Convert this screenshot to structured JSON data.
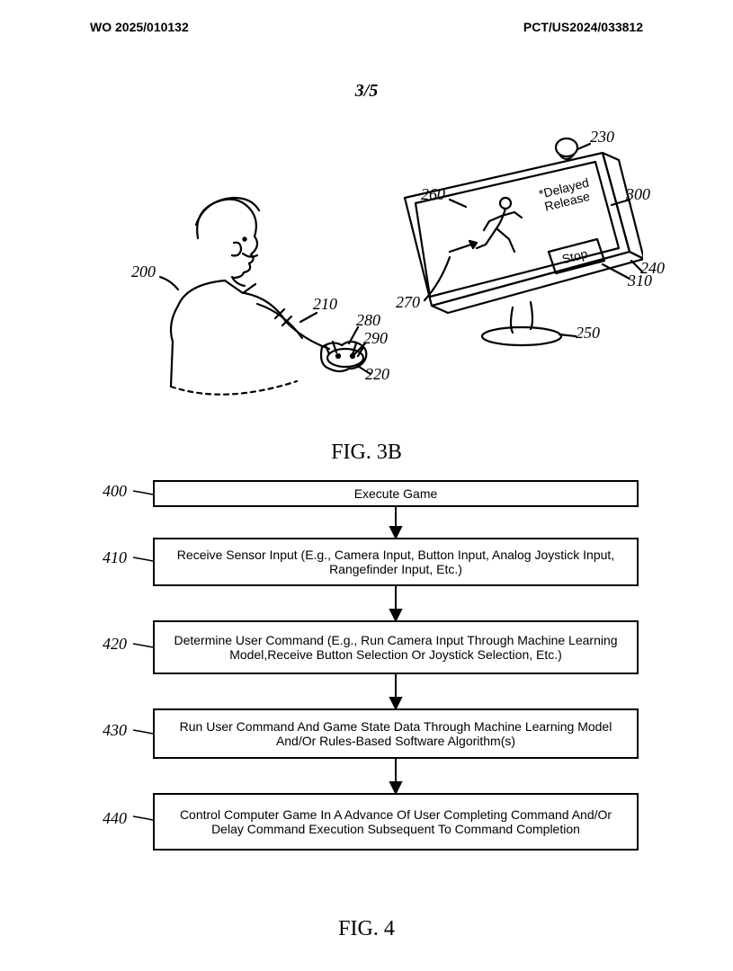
{
  "header": {
    "left": "WO 2025/010132",
    "right": "PCT/US2024/033812"
  },
  "page_number": "3/5",
  "figure3b": {
    "caption": "FIG. 3B",
    "tv_text_label": "*Delayed\nRelease",
    "stop_button_label": "Stop",
    "reference_labels": {
      "200": "200",
      "210": "210",
      "220": "220",
      "230": "230",
      "240": "240",
      "250": "250",
      "260": "260",
      "270": "270",
      "280": "280",
      "290": "290",
      "300": "300",
      "310": "310"
    }
  },
  "figure4": {
    "caption": "FIG. 4",
    "steps": [
      {
        "ref": "400",
        "text": "Execute Game"
      },
      {
        "ref": "410",
        "text": "Receive Sensor Input (E.g., Camera Input, Button Input, Analog Joystick Input, Rangefinder Input, Etc.)"
      },
      {
        "ref": "420",
        "text": "Determine User Command (E.g., Run Camera Input Through Machine Learning Model,Receive Button Selection Or Joystick Selection, Etc.)"
      },
      {
        "ref": "430",
        "text": "Run User Command And Game State Data Through Machine Learning Model And/Or Rules-Based Software Algorithm(s)"
      },
      {
        "ref": "440",
        "text": "Control Computer Game In A Advance Of User Completing Command And/Or Delay Command Execution Subsequent To Command Completion"
      }
    ]
  },
  "style": {
    "stroke": "#000000",
    "stroke_width": 2,
    "background": "#ffffff",
    "font_serif": "Times New Roman",
    "font_sans": "Arial"
  }
}
